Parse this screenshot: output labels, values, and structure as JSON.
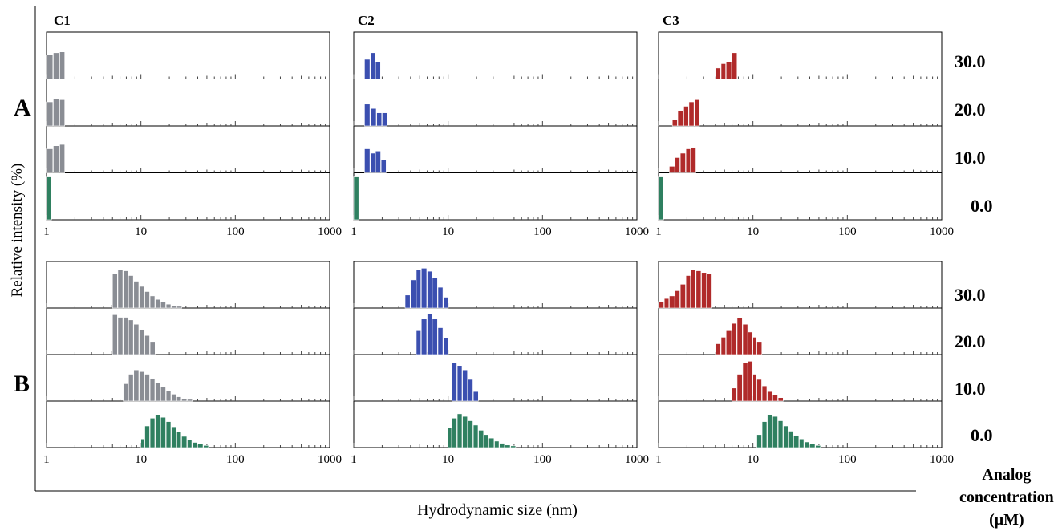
{
  "figure": {
    "row_labels": [
      "A",
      "B"
    ],
    "column_labels": [
      "C1",
      "C2",
      "C3"
    ],
    "ylabel": "Relative intensity (%)",
    "xlabel": "Hydrodynamic size (nm)",
    "legend_title": [
      "Analog",
      "concentration",
      "(μM)"
    ],
    "concentrations": [
      "30.0",
      "20.0",
      "10.0",
      "0.0"
    ],
    "x_ticks": [
      "1",
      "10",
      "100",
      "1000"
    ],
    "colors": {
      "C1": "#8a8d94",
      "C2": "#3b4fb0",
      "C3": "#b02a2a",
      "control": "#2f8060"
    }
  },
  "chart_data": [
    {
      "type": "bar",
      "row": "A",
      "column": "C1",
      "x_scale": "log",
      "xlim": [
        1,
        1000
      ],
      "panels": [
        {
          "concentration": "30.0",
          "bars": [
            [
              1.0,
              0.55
            ],
            [
              1.18,
              0.6
            ],
            [
              1.38,
              0.62
            ]
          ]
        },
        {
          "concentration": "20.0",
          "bars": [
            [
              1.0,
              0.55
            ],
            [
              1.18,
              0.62
            ],
            [
              1.38,
              0.6
            ]
          ]
        },
        {
          "concentration": "10.0",
          "bars": [
            [
              1.0,
              0.55
            ],
            [
              1.18,
              0.62
            ],
            [
              1.38,
              0.65
            ]
          ]
        },
        {
          "concentration": "0.0",
          "bars": [
            [
              1.0,
              0.98
            ]
          ]
        }
      ]
    },
    {
      "type": "bar",
      "row": "A",
      "column": "C2",
      "x_scale": "log",
      "xlim": [
        1,
        1000
      ],
      "panels": [
        {
          "concentration": "30.0",
          "bars": [
            [
              1.3,
              0.45
            ],
            [
              1.5,
              0.6
            ],
            [
              1.7,
              0.4
            ]
          ]
        },
        {
          "concentration": "20.0",
          "bars": [
            [
              1.3,
              0.5
            ],
            [
              1.5,
              0.4
            ],
            [
              1.75,
              0.3
            ],
            [
              2.0,
              0.3
            ]
          ]
        },
        {
          "concentration": "10.0",
          "bars": [
            [
              1.3,
              0.55
            ],
            [
              1.5,
              0.45
            ],
            [
              1.7,
              0.5
            ],
            [
              1.95,
              0.3
            ]
          ]
        },
        {
          "concentration": "0.0",
          "bars": [
            [
              1.0,
              0.98
            ]
          ]
        }
      ]
    },
    {
      "type": "bar",
      "row": "A",
      "column": "C3",
      "x_scale": "log",
      "xlim": [
        1,
        1000
      ],
      "panels": [
        {
          "concentration": "30.0",
          "bars": [
            [
              4.0,
              0.25
            ],
            [
              4.6,
              0.35
            ],
            [
              5.2,
              0.4
            ],
            [
              6.0,
              0.6
            ]
          ]
        },
        {
          "concentration": "20.0",
          "bars": [
            [
              1.4,
              0.15
            ],
            [
              1.6,
              0.35
            ],
            [
              1.85,
              0.45
            ],
            [
              2.1,
              0.55
            ],
            [
              2.4,
              0.6
            ]
          ]
        },
        {
          "concentration": "10.0",
          "bars": [
            [
              1.3,
              0.15
            ],
            [
              1.5,
              0.35
            ],
            [
              1.7,
              0.45
            ],
            [
              1.95,
              0.55
            ],
            [
              2.2,
              0.58
            ]
          ]
        },
        {
          "concentration": "0.0",
          "bars": [
            [
              1.0,
              0.98
            ]
          ]
        }
      ]
    },
    {
      "type": "bar",
      "row": "B",
      "column": "C1",
      "x_scale": "log",
      "xlim": [
        1,
        1000
      ],
      "panels": [
        {
          "concentration": "30.0",
          "bars": [
            [
              5.0,
              0.8
            ],
            [
              5.7,
              0.88
            ],
            [
              6.5,
              0.86
            ],
            [
              7.4,
              0.75
            ],
            [
              8.4,
              0.62
            ],
            [
              9.6,
              0.5
            ],
            [
              11,
              0.38
            ],
            [
              12.5,
              0.28
            ],
            [
              14.2,
              0.2
            ],
            [
              16.2,
              0.14
            ],
            [
              18.5,
              0.09
            ],
            [
              21,
              0.06
            ],
            [
              24,
              0.04
            ]
          ]
        },
        {
          "concentration": "20.0",
          "bars": [
            [
              5.0,
              0.92
            ],
            [
              5.7,
              0.86
            ],
            [
              6.5,
              0.86
            ],
            [
              7.4,
              0.8
            ],
            [
              8.4,
              0.7
            ],
            [
              9.6,
              0.58
            ],
            [
              11,
              0.44
            ],
            [
              12.5,
              0.3
            ]
          ]
        },
        {
          "concentration": "10.0",
          "bars": [
            [
              6.5,
              0.4
            ],
            [
              7.4,
              0.62
            ],
            [
              8.4,
              0.72
            ],
            [
              9.6,
              0.68
            ],
            [
              11,
              0.62
            ],
            [
              12.5,
              0.52
            ],
            [
              14.2,
              0.42
            ],
            [
              16.2,
              0.32
            ],
            [
              18.5,
              0.24
            ],
            [
              21,
              0.16
            ],
            [
              24,
              0.1
            ],
            [
              27,
              0.06
            ],
            [
              31,
              0.04
            ]
          ]
        },
        {
          "concentration": "0.0",
          "bars": [
            [
              10,
              0.2
            ],
            [
              11,
              0.5
            ],
            [
              12.5,
              0.68
            ],
            [
              14.2,
              0.75
            ],
            [
              16.2,
              0.7
            ],
            [
              18.5,
              0.6
            ],
            [
              21,
              0.48
            ],
            [
              24,
              0.36
            ],
            [
              27,
              0.26
            ],
            [
              31,
              0.18
            ],
            [
              35,
              0.12
            ],
            [
              40,
              0.08
            ],
            [
              46,
              0.05
            ]
          ]
        }
      ]
    },
    {
      "type": "bar",
      "row": "B",
      "column": "C2",
      "x_scale": "log",
      "xlim": [
        1,
        1000
      ],
      "panels": [
        {
          "concentration": "30.0",
          "bars": [
            [
              3.5,
              0.3
            ],
            [
              4.0,
              0.65
            ],
            [
              4.6,
              0.88
            ],
            [
              5.2,
              0.92
            ],
            [
              6.0,
              0.85
            ],
            [
              6.8,
              0.7
            ],
            [
              7.8,
              0.48
            ],
            [
              8.9,
              0.25
            ]
          ]
        },
        {
          "concentration": "20.0",
          "bars": [
            [
              4.6,
              0.55
            ],
            [
              5.2,
              0.82
            ],
            [
              6.0,
              0.95
            ],
            [
              6.8,
              0.82
            ],
            [
              7.8,
              0.62
            ],
            [
              8.9,
              0.38
            ]
          ]
        },
        {
          "concentration": "10.0",
          "bars": [
            [
              11,
              0.88
            ],
            [
              12.5,
              0.82
            ],
            [
              14.2,
              0.72
            ],
            [
              16.2,
              0.5
            ],
            [
              18.5,
              0.22
            ]
          ]
        },
        {
          "concentration": "0.0",
          "bars": [
            [
              10,
              0.45
            ],
            [
              11,
              0.68
            ],
            [
              12.5,
              0.78
            ],
            [
              14.2,
              0.72
            ],
            [
              16.2,
              0.62
            ],
            [
              18.5,
              0.52
            ],
            [
              21,
              0.4
            ],
            [
              24,
              0.3
            ],
            [
              27,
              0.22
            ],
            [
              31,
              0.15
            ],
            [
              35,
              0.1
            ],
            [
              40,
              0.06
            ],
            [
              46,
              0.04
            ]
          ]
        }
      ]
    },
    {
      "type": "bar",
      "row": "B",
      "column": "C3",
      "x_scale": "log",
      "xlim": [
        1,
        1000
      ],
      "panels": [
        {
          "concentration": "30.0",
          "bars": [
            [
              1.0,
              0.15
            ],
            [
              1.15,
              0.22
            ],
            [
              1.3,
              0.28
            ],
            [
              1.5,
              0.4
            ],
            [
              1.7,
              0.55
            ],
            [
              1.95,
              0.75
            ],
            [
              2.2,
              0.88
            ],
            [
              2.5,
              0.86
            ],
            [
              2.85,
              0.82
            ],
            [
              3.25,
              0.8
            ]
          ]
        },
        {
          "concentration": "20.0",
          "bars": [
            [
              4.0,
              0.25
            ],
            [
              4.6,
              0.4
            ],
            [
              5.2,
              0.55
            ],
            [
              6.0,
              0.72
            ],
            [
              6.8,
              0.85
            ],
            [
              7.8,
              0.7
            ],
            [
              8.9,
              0.52
            ],
            [
              10,
              0.4
            ],
            [
              11,
              0.3
            ]
          ]
        },
        {
          "concentration": "10.0",
          "bars": [
            [
              6.0,
              0.3
            ],
            [
              6.8,
              0.62
            ],
            [
              7.8,
              0.88
            ],
            [
              8.9,
              0.92
            ],
            [
              10,
              0.62
            ],
            [
              11,
              0.5
            ],
            [
              12.5,
              0.35
            ],
            [
              14.2,
              0.22
            ],
            [
              16.2,
              0.14
            ],
            [
              18.5,
              0.08
            ]
          ]
        },
        {
          "concentration": "0.0",
          "bars": [
            [
              11,
              0.3
            ],
            [
              12.5,
              0.6
            ],
            [
              14.2,
              0.76
            ],
            [
              16.2,
              0.72
            ],
            [
              18.5,
              0.62
            ],
            [
              21,
              0.5
            ],
            [
              24,
              0.38
            ],
            [
              27,
              0.28
            ],
            [
              31,
              0.2
            ],
            [
              35,
              0.13
            ],
            [
              40,
              0.08
            ],
            [
              46,
              0.05
            ]
          ]
        }
      ]
    }
  ]
}
